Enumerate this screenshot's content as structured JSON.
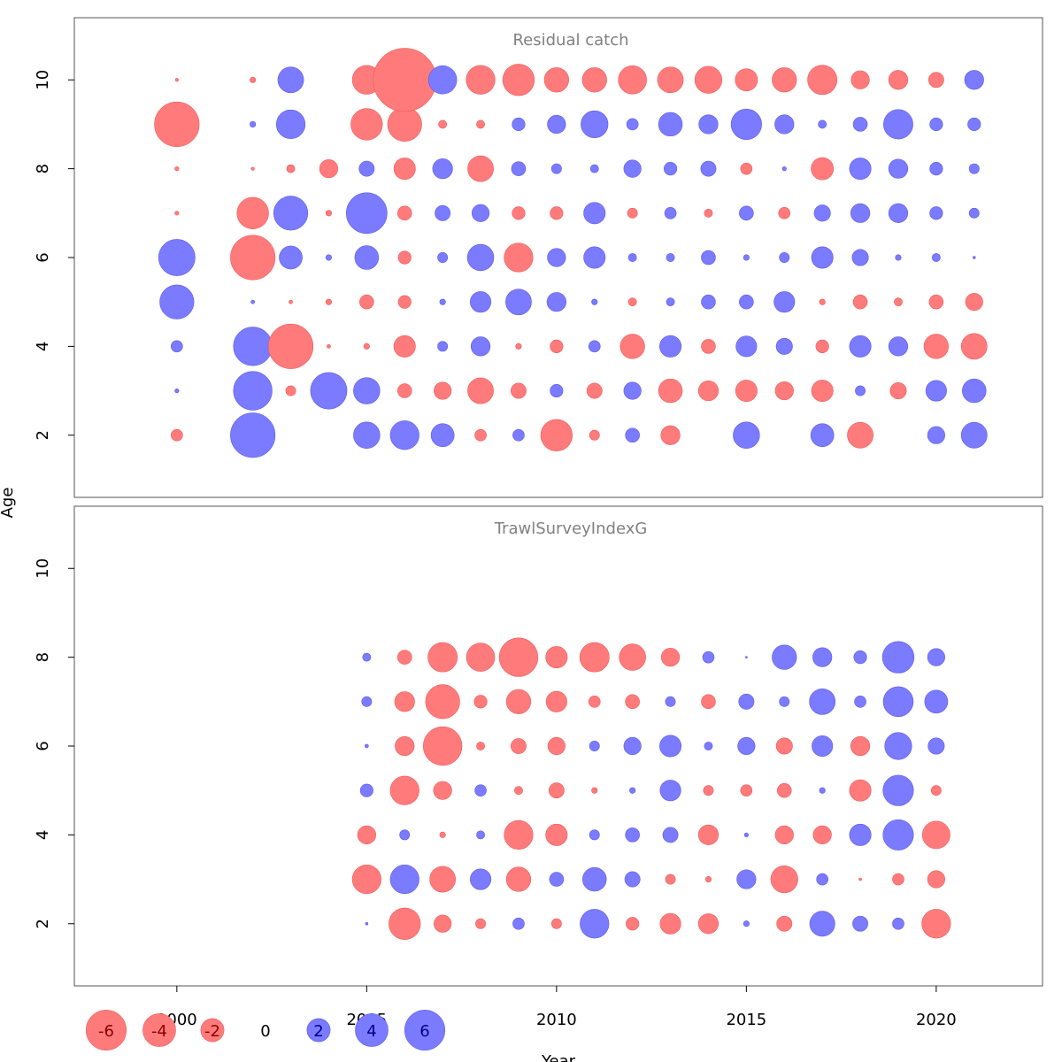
{
  "chart_data": [
    {
      "type": "scatter",
      "title": "Residual catch",
      "xlabel": "Year",
      "ylabel": "Age",
      "x_ticks": [
        2000,
        2005,
        2010,
        2015,
        2020
      ],
      "y_ticks": [
        2,
        4,
        6,
        8,
        10
      ],
      "xlim": [
        1997.3,
        2022.8
      ],
      "ylim": [
        0.6,
        11.4
      ],
      "ages": [
        2,
        3,
        4,
        5,
        6,
        7,
        8,
        9,
        10
      ],
      "colors": {
        "negative": "#ff7b7b",
        "positive": "#7b7bff"
      },
      "years": [
        2000,
        2002,
        2003,
        2004,
        2005,
        2006,
        2007,
        2008,
        2009,
        2010,
        2011,
        2012,
        2013,
        2014,
        2015,
        2016,
        2017,
        2018,
        2019,
        2020,
        2021
      ],
      "residuals_by_age": {
        "2": [
          -0.4,
          6.0,
          null,
          null,
          2.1,
          2.5,
          1.6,
          -0.4,
          0.4,
          -3.0,
          -0.3,
          0.6,
          -1.1,
          null,
          2.1,
          null,
          1.6,
          -2.0,
          null,
          0.9,
          2.0
        ],
        "3": [
          0.05,
          4.5,
          -0.3,
          4.0,
          2.1,
          -0.6,
          -0.9,
          -2.0,
          -0.7,
          0.5,
          -0.7,
          0.9,
          -1.7,
          -1.2,
          -1.4,
          -1.0,
          -1.4,
          0.3,
          -0.8,
          1.3,
          1.7
        ],
        "4": [
          0.4,
          4.5,
          -6.0,
          -0.04,
          -0.1,
          -1.4,
          0.3,
          1.1,
          -0.1,
          -0.5,
          0.4,
          -1.8,
          1.4,
          -0.6,
          1.3,
          0.8,
          -0.5,
          1.4,
          1.1,
          -1.8,
          -2.0
        ],
        "5": [
          3.5,
          0.04,
          -0.04,
          -0.1,
          -0.6,
          -0.5,
          0.1,
          1.3,
          2.0,
          1.1,
          0.1,
          -0.2,
          0.2,
          0.6,
          0.6,
          1.3,
          -0.1,
          -0.6,
          -0.2,
          -0.6,
          -0.9
        ],
        "6": [
          4.0,
          -6.0,
          1.6,
          0.1,
          1.7,
          -0.5,
          0.3,
          2.1,
          -2.5,
          1.0,
          1.4,
          0.2,
          0.2,
          0.6,
          0.1,
          0.3,
          1.4,
          0.8,
          0.1,
          0.2,
          0.02
        ],
        "7": [
          -0.05,
          -3.0,
          3.5,
          -0.1,
          5.0,
          -0.6,
          0.7,
          0.9,
          -0.5,
          -0.5,
          1.4,
          -0.3,
          0.4,
          -0.2,
          0.6,
          -0.4,
          0.8,
          1.1,
          1.1,
          0.5,
          0.3
        ],
        "8": [
          -0.05,
          -0.03,
          -0.2,
          -1.0,
          0.7,
          -1.4,
          1.2,
          -2.0,
          0.6,
          0.3,
          0.2,
          0.9,
          0.5,
          0.7,
          -0.4,
          0.05,
          -1.5,
          1.4,
          1.1,
          0.5,
          0.3
        ],
        "9": [
          -6.0,
          0.1,
          2.5,
          null,
          -3.0,
          -3.5,
          -0.2,
          -0.2,
          0.5,
          1.0,
          2.2,
          0.4,
          1.7,
          1.1,
          2.8,
          1.1,
          0.2,
          0.6,
          2.6,
          0.5,
          0.5
        ],
        "10": [
          -0.03,
          -0.1,
          2.0,
          null,
          -2.5,
          -12.0,
          2.4,
          -2.5,
          -3.0,
          -1.8,
          -1.8,
          -2.4,
          -2.0,
          -2.2,
          -1.5,
          -1.8,
          -2.6,
          -1.0,
          -1.1,
          -0.7,
          1.1
        ]
      }
    },
    {
      "type": "scatter",
      "title": "TrawlSurveyIndexG",
      "xlabel": "Year",
      "ylabel": "Age",
      "x_ticks": [
        2000,
        2005,
        2010,
        2015,
        2020
      ],
      "y_ticks": [
        2,
        4,
        6,
        8,
        10
      ],
      "xlim": [
        1997.3,
        2022.8
      ],
      "ylim": [
        0.6,
        11.4
      ],
      "ages": [
        2,
        3,
        4,
        5,
        6,
        7,
        8
      ],
      "colors": {
        "negative": "#ff7b7b",
        "positive": "#7b7bff"
      },
      "years": [
        2005,
        2006,
        2007,
        2008,
        2009,
        2010,
        2011,
        2012,
        2013,
        2014,
        2015,
        2016,
        2017,
        2018,
        2019,
        2020
      ],
      "residuals_by_age": {
        "2": [
          0.02,
          -3.0,
          -0.9,
          -0.3,
          0.4,
          -0.3,
          2.5,
          -0.5,
          -1.3,
          -1.2,
          0.1,
          -0.7,
          1.9,
          0.7,
          0.4,
          -2.5
        ],
        "3": [
          -2.5,
          2.5,
          -2.0,
          1.3,
          -1.8,
          0.6,
          1.7,
          0.7,
          -0.3,
          -0.1,
          1.1,
          -2.2,
          0.4,
          -0.02,
          -0.4,
          -0.9
        ],
        "4": [
          -1.0,
          0.3,
          -0.1,
          0.2,
          -2.5,
          -1.4,
          0.3,
          0.6,
          0.7,
          -1.2,
          0.05,
          -1.0,
          -1.0,
          1.4,
          2.8,
          -2.3
        ],
        "5": [
          0.5,
          -2.5,
          -1.0,
          0.4,
          -0.2,
          -0.7,
          -0.1,
          0.1,
          1.3,
          -0.3,
          -0.4,
          -0.6,
          0.1,
          -1.4,
          2.8,
          -0.3
        ],
        "6": [
          0.04,
          -1.1,
          -4.5,
          -0.2,
          -0.7,
          -0.9,
          0.3,
          0.9,
          1.4,
          0.2,
          0.9,
          -0.8,
          1.3,
          -1.1,
          2.2,
          0.8
        ],
        "7": [
          0.3,
          -1.2,
          -3.5,
          -0.5,
          -1.8,
          -1.3,
          -0.4,
          -0.6,
          0.3,
          -0.6,
          0.7,
          0.3,
          2.0,
          0.4,
          2.7,
          1.6
        ],
        "8": [
          0.2,
          -0.6,
          -2.6,
          -2.4,
          -4.5,
          -1.4,
          -2.6,
          -2.1,
          -1.0,
          0.4,
          0.01,
          1.8,
          1.1,
          0.5,
          3.0,
          0.9
        ]
      }
    }
  ],
  "legend": {
    "values": [
      -6,
      -4,
      -2,
      0,
      2,
      4,
      6
    ],
    "labels": [
      "-6",
      "-4",
      "-2",
      "0",
      "2",
      "4",
      "6"
    ]
  },
  "axes": {
    "xlabel": "Year",
    "ylabel": "Age"
  }
}
